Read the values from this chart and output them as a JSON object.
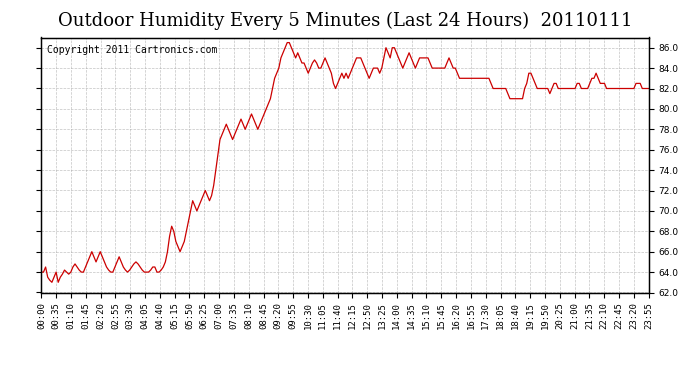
{
  "title": "Outdoor Humidity Every 5 Minutes (Last 24 Hours)  20110111",
  "copyright": "Copyright 2011 Cartronics.com",
  "ylabel_right": "%",
  "ylim": [
    62.0,
    87.0
  ],
  "yticks": [
    62.0,
    64.0,
    66.0,
    68.0,
    70.0,
    72.0,
    74.0,
    76.0,
    78.0,
    80.0,
    82.0,
    84.0,
    86.0
  ],
  "line_color": "#cc0000",
  "bg_color": "#ffffff",
  "plot_bg_color": "#ffffff",
  "grid_color": "#aaaaaa",
  "title_fontsize": 13,
  "copyright_fontsize": 7,
  "tick_fontsize": 6.5,
  "humidity": [
    64.0,
    64.0,
    64.5,
    63.5,
    63.2,
    63.0,
    63.5,
    64.0,
    63.0,
    63.5,
    63.8,
    64.2,
    64.0,
    63.8,
    64.0,
    64.5,
    64.8,
    64.5,
    64.2,
    64.0,
    64.0,
    64.5,
    65.0,
    65.5,
    66.0,
    65.5,
    65.0,
    65.5,
    66.0,
    65.5,
    65.0,
    64.5,
    64.2,
    64.0,
    64.0,
    64.5,
    65.0,
    65.5,
    65.0,
    64.5,
    64.2,
    64.0,
    64.2,
    64.5,
    64.8,
    65.0,
    64.8,
    64.5,
    64.2,
    64.0,
    64.0,
    64.0,
    64.2,
    64.5,
    64.5,
    64.0,
    64.0,
    64.2,
    64.5,
    65.0,
    66.0,
    67.5,
    68.5,
    68.0,
    67.0,
    66.5,
    66.0,
    66.5,
    67.0,
    68.0,
    69.0,
    70.0,
    71.0,
    70.5,
    70.0,
    70.5,
    71.0,
    71.5,
    72.0,
    71.5,
    71.0,
    71.5,
    72.5,
    74.0,
    75.5,
    77.0,
    77.5,
    78.0,
    78.5,
    78.0,
    77.5,
    77.0,
    77.5,
    78.0,
    78.5,
    79.0,
    78.5,
    78.0,
    78.5,
    79.0,
    79.5,
    79.0,
    78.5,
    78.0,
    78.5,
    79.0,
    79.5,
    80.0,
    80.5,
    81.0,
    82.0,
    83.0,
    83.5,
    84.0,
    85.0,
    85.5,
    86.0,
    86.5,
    86.5,
    86.0,
    85.5,
    85.0,
    85.5,
    85.0,
    84.5,
    84.5,
    84.0,
    83.5,
    84.0,
    84.5,
    84.8,
    84.5,
    84.0,
    84.0,
    84.5,
    85.0,
    84.5,
    84.0,
    83.5,
    82.5,
    82.0,
    82.5,
    83.0,
    83.5,
    83.0,
    83.5,
    83.0,
    83.5,
    84.0,
    84.5,
    85.0,
    85.0,
    85.0,
    84.5,
    84.0,
    83.5,
    83.0,
    83.5,
    84.0,
    84.0,
    84.0,
    83.5,
    84.0,
    85.0,
    86.0,
    85.5,
    85.0,
    86.0,
    86.0,
    85.5,
    85.0,
    84.5,
    84.0,
    84.5,
    85.0,
    85.5,
    85.0,
    84.5,
    84.0,
    84.5,
    85.0,
    85.0,
    85.0,
    85.0,
    85.0,
    84.5,
    84.0,
    84.0,
    84.0,
    84.0,
    84.0,
    84.0,
    84.0,
    84.5,
    85.0,
    84.5,
    84.0,
    84.0,
    83.5,
    83.0,
    83.0,
    83.0,
    83.0,
    83.0,
    83.0,
    83.0,
    83.0,
    83.0,
    83.0,
    83.0,
    83.0,
    83.0,
    83.0,
    83.0,
    82.5,
    82.0,
    82.0,
    82.0,
    82.0,
    82.0,
    82.0,
    82.0,
    81.5,
    81.0,
    81.0,
    81.0,
    81.0,
    81.0,
    81.0,
    81.0,
    82.0,
    82.5,
    83.5,
    83.5,
    83.0,
    82.5,
    82.0,
    82.0,
    82.0,
    82.0,
    82.0,
    82.0,
    81.5,
    82.0,
    82.5,
    82.5,
    82.0,
    82.0,
    82.0,
    82.0,
    82.0,
    82.0,
    82.0,
    82.0,
    82.0,
    82.5,
    82.5,
    82.0,
    82.0,
    82.0,
    82.0,
    82.5,
    83.0,
    83.0,
    83.5,
    83.0,
    82.5,
    82.5,
    82.5,
    82.0,
    82.0,
    82.0,
    82.0,
    82.0,
    82.0,
    82.0,
    82.0,
    82.0,
    82.0,
    82.0,
    82.0,
    82.0,
    82.0,
    82.5,
    82.5,
    82.5,
    82.0,
    82.0,
    82.0,
    82.0
  ],
  "xtick_labels": [
    "00:00",
    "00:35",
    "01:10",
    "01:45",
    "02:20",
    "02:55",
    "03:30",
    "04:05",
    "04:40",
    "05:15",
    "05:50",
    "06:25",
    "07:00",
    "07:35",
    "08:10",
    "08:45",
    "09:20",
    "09:55",
    "10:30",
    "11:05",
    "11:40",
    "12:15",
    "12:50",
    "13:25",
    "14:00",
    "14:35",
    "15:10",
    "15:45",
    "16:20",
    "16:55",
    "17:30",
    "18:05",
    "18:40",
    "19:15",
    "19:50",
    "20:25",
    "21:00",
    "21:35",
    "22:10",
    "22:45",
    "23:20",
    "23:55"
  ]
}
